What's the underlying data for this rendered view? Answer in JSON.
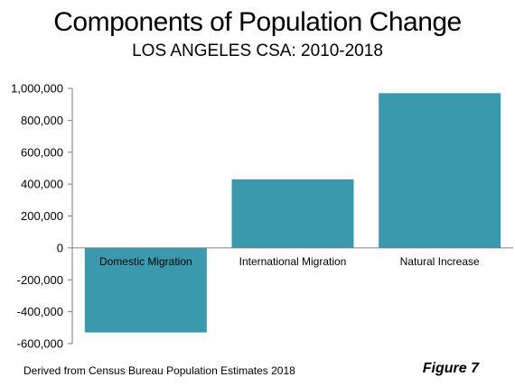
{
  "chart_data": {
    "type": "bar",
    "title": "Components of Population Change",
    "subtitle": "LOS ANGELES CSA: 2010-2018",
    "categories": [
      "Domestic Migration",
      "International Migration",
      "Natural Increase"
    ],
    "values": [
      -530000,
      430000,
      970000
    ],
    "ylim": [
      -600000,
      1000000
    ],
    "yticks": [
      "1,000,000",
      "800,000",
      "600,000",
      "400,000",
      "200,000",
      "0",
      "-200,000",
      "-400,000",
      "-600,000"
    ],
    "ytick_values": [
      1000000,
      800000,
      600000,
      400000,
      200000,
      0,
      -200000,
      -400000,
      -600000
    ],
    "bar_color": "#3a99ad",
    "axis_color": "#7f7f7f",
    "grid": false,
    "legend": "none"
  },
  "footer": {
    "source": "Derived from Census Bureau Population Estimates 2018",
    "figure_label": "Figure 7"
  }
}
